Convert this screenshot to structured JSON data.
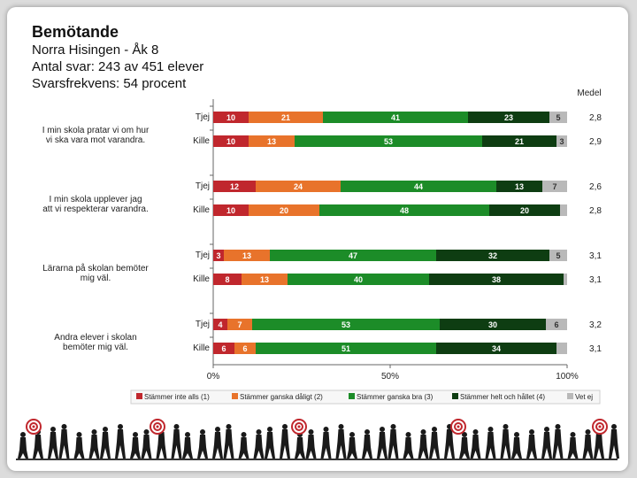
{
  "slide": {
    "title": "Bemötande",
    "subtitle_lines": [
      "Norra Hisingen - Åk 8",
      "Antal svar: 243 av 451 elever",
      "Svarsfrekvens: 54 procent"
    ]
  },
  "chart_data": {
    "type": "stacked-bar-horizontal",
    "mean_header": "Medel",
    "xaxis": {
      "ticks": [
        "0%",
        "50%",
        "100%"
      ],
      "range": [
        0,
        100
      ]
    },
    "legend": [
      {
        "label": "Stämmer inte alls (1)",
        "color": "#c0272d"
      },
      {
        "label": "Stämmer ganska dåligt (2)",
        "color": "#e8732b"
      },
      {
        "label": "Stämmer ganska bra (3)",
        "color": "#1c8c28"
      },
      {
        "label": "Stämmer helt och hållet (4)",
        "color": "#0e3d12"
      },
      {
        "label": "Vet ej",
        "color": "#b9b9b9"
      }
    ],
    "questions": [
      {
        "question": "I min skola pratar vi om hur vi ska vara mot varandra.",
        "rows": [
          {
            "group": "Tjej",
            "values": [
              10,
              21,
              41,
              23,
              5
            ],
            "labels": [
              "10",
              "21",
              "41",
              "23",
              "5"
            ],
            "mean": "2,8"
          },
          {
            "group": "Kille",
            "values": [
              10,
              13,
              53,
              21,
              3
            ],
            "labels": [
              "10",
              "13",
              "53",
              "21",
              "3"
            ],
            "mean": "2,9"
          }
        ]
      },
      {
        "question": "I min skola upplever jag att vi respekterar varandra.",
        "rows": [
          {
            "group": "Tjej",
            "values": [
              12,
              24,
              44,
              13,
              7
            ],
            "labels": [
              "12",
              "24",
              "44",
              "13",
              "7"
            ],
            "mean": "2,6"
          },
          {
            "group": "Kille",
            "values": [
              10,
              20,
              48,
              20,
              2
            ],
            "labels": [
              "10",
              "20",
              "48",
              "20",
              ""
            ],
            "mean": "2,8"
          }
        ]
      },
      {
        "question": "Lärarna på skolan bemöter mig väl.",
        "rows": [
          {
            "group": "Tjej",
            "values": [
              3,
              13,
              47,
              32,
              5
            ],
            "labels": [
              "3",
              "13",
              "47",
              "32",
              "5"
            ],
            "mean": "3,1"
          },
          {
            "group": "Kille",
            "values": [
              8,
              13,
              40,
              38,
              1
            ],
            "labels": [
              "8",
              "13",
              "40",
              "38",
              ""
            ],
            "mean": "3,1"
          }
        ]
      },
      {
        "question": "Andra elever i skolan bemöter mig väl.",
        "rows": [
          {
            "group": "Tjej",
            "values": [
              4,
              7,
              53,
              30,
              6
            ],
            "labels": [
              "4",
              "7",
              "53",
              "30",
              "6"
            ],
            "mean": "3,2"
          },
          {
            "group": "Kille",
            "values": [
              6,
              6,
              51,
              34,
              3
            ],
            "labels": [
              "6",
              "6",
              "51",
              "34",
              ""
            ],
            "mean": "3,1"
          }
        ]
      }
    ]
  }
}
